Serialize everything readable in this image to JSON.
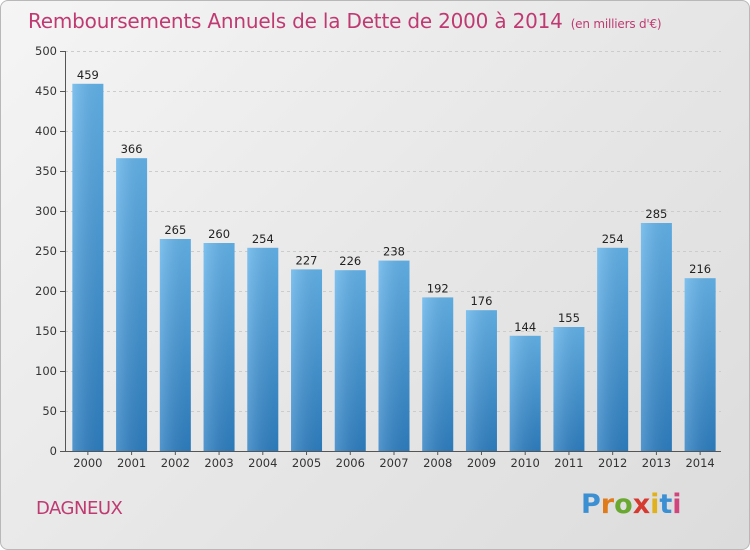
{
  "title": "Remboursements Annuels de la Dette de 2000 à 2014",
  "subtitle": "(en milliers d'€)",
  "commune": "DAGNEUX",
  "logo": {
    "p": "P",
    "r": "r",
    "o": "o",
    "x": "x",
    "i": "i",
    "t": "t",
    "i2": "i"
  },
  "colors": {
    "title": "#c03a72",
    "bar_top": "#63b3ea",
    "bar_bottom": "#2e7fc2",
    "grid": "#cccccc"
  },
  "chart_data": {
    "type": "bar",
    "categories": [
      "2000",
      "2001",
      "2002",
      "2003",
      "2004",
      "2005",
      "2006",
      "2007",
      "2008",
      "2009",
      "2010",
      "2011",
      "2012",
      "2013",
      "2014"
    ],
    "values": [
      459,
      366,
      265,
      260,
      254,
      227,
      226,
      238,
      192,
      176,
      144,
      155,
      254,
      285,
      216
    ],
    "yticks": [
      0,
      50,
      100,
      150,
      200,
      250,
      300,
      350,
      400,
      450,
      500
    ],
    "ylim": [
      0,
      500
    ],
    "grid": true,
    "legend": "none"
  }
}
